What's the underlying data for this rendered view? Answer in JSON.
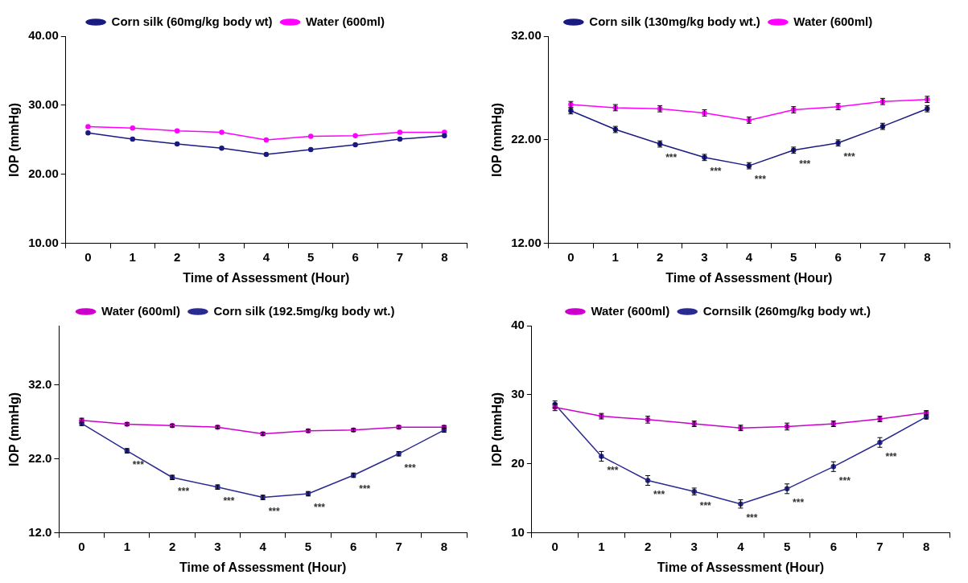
{
  "chart_data": [
    {
      "type": "line",
      "xlabel": "Time of Assessment (Hour)",
      "ylabel": "IOP (mmHg)",
      "categories": [
        "0",
        "1",
        "2",
        "3",
        "4",
        "5",
        "6",
        "7",
        "8"
      ],
      "ylim": [
        10,
        40
      ],
      "yticks": [
        {
          "value": 10,
          "label": "10.00"
        },
        {
          "value": 20,
          "label": "20.00"
        },
        {
          "value": 30,
          "label": "30.00"
        },
        {
          "value": 40,
          "label": "40.00"
        }
      ],
      "grid": false,
      "legend": "top",
      "marker": "circle",
      "line_style": "solid",
      "series": [
        {
          "name": "Corn silk (60mg/kg body wt)",
          "color": "#1a1a80",
          "values": [
            26.0,
            25.1,
            24.4,
            23.8,
            22.9,
            23.6,
            24.3,
            25.1,
            25.6
          ]
        },
        {
          "name": "Water (600ml)",
          "color": "#ff00ff",
          "values": [
            26.9,
            26.7,
            26.3,
            26.1,
            25.0,
            25.5,
            25.6,
            26.1,
            26.1
          ]
        }
      ]
    },
    {
      "type": "line",
      "xlabel": "Time of Assessment (Hour)",
      "ylabel": "IOP (mmHg)",
      "categories": [
        "0",
        "1",
        "2",
        "3",
        "4",
        "5",
        "6",
        "7",
        "8"
      ],
      "ylim": [
        12,
        32
      ],
      "yticks": [
        {
          "value": 12,
          "label": "12.00"
        },
        {
          "value": 22,
          "label": "22.00"
        },
        {
          "value": 32,
          "label": "32.00"
        }
      ],
      "grid": false,
      "legend": "top",
      "marker": "circle",
      "line_style": "solid",
      "annotations": [
        {
          "text": "***",
          "x": "2",
          "y": 21.6
        },
        {
          "text": "***",
          "x": "3",
          "y": 20.3
        },
        {
          "text": "***",
          "x": "4",
          "y": 19.5
        },
        {
          "text": "***",
          "x": "5",
          "y": 21.0
        },
        {
          "text": "***",
          "x": "6",
          "y": 21.7
        }
      ],
      "series": [
        {
          "name": "Corn silk (130mg/kg body wt.)",
          "color": "#1a1a80",
          "values": [
            24.8,
            23.0,
            21.6,
            20.3,
            19.5,
            21.0,
            21.7,
            23.3,
            25.0
          ],
          "errors": [
            0.3,
            0.3,
            0.3,
            0.3,
            0.3,
            0.3,
            0.3,
            0.3,
            0.3
          ]
        },
        {
          "name": "Water (600ml)",
          "color": "#ff00ff",
          "values": [
            25.4,
            25.1,
            25.0,
            24.6,
            23.9,
            24.9,
            25.2,
            25.7,
            25.9
          ],
          "errors": [
            0.3,
            0.3,
            0.3,
            0.3,
            0.3,
            0.3,
            0.3,
            0.3,
            0.3
          ]
        }
      ]
    },
    {
      "type": "line",
      "xlabel": "Time of Assessment (Hour)",
      "ylabel": "IOP (mmHg)",
      "categories": [
        "0",
        "1",
        "2",
        "3",
        "4",
        "5",
        "6",
        "7",
        "8"
      ],
      "ylim": [
        12,
        40
      ],
      "yticks": [
        {
          "value": 12,
          "label": "12.0"
        },
        {
          "value": 22,
          "label": "22.0"
        },
        {
          "value": 32,
          "label": "32.0"
        }
      ],
      "grid": false,
      "legend": "top",
      "marker": "circle",
      "line_style": "solid",
      "annotations": [
        {
          "text": "***",
          "x": "1",
          "y": 23.1
        },
        {
          "text": "***",
          "x": "2",
          "y": 19.5
        },
        {
          "text": "***",
          "x": "3",
          "y": 18.2
        },
        {
          "text": "***",
          "x": "4",
          "y": 16.8
        },
        {
          "text": "***",
          "x": "5",
          "y": 17.3
        },
        {
          "text": "***",
          "x": "6",
          "y": 19.8
        },
        {
          "text": "***",
          "x": "7",
          "y": 22.7
        }
      ],
      "series": [
        {
          "name": "Water (600ml)",
          "color": "#cc00cc",
          "values": [
            27.2,
            26.7,
            26.5,
            26.3,
            25.4,
            25.8,
            25.9,
            26.3,
            26.3
          ],
          "errors": [
            0.3,
            0.2,
            0.2,
            0.2,
            0.2,
            0.2,
            0.2,
            0.2,
            0.2
          ]
        },
        {
          "name": "Corn silk (192.5mg/kg body wt.)",
          "color": "#2a2a90",
          "values": [
            26.8,
            23.1,
            19.5,
            18.2,
            16.8,
            17.3,
            19.8,
            22.7,
            25.9
          ],
          "errors": [
            0.3,
            0.3,
            0.3,
            0.3,
            0.3,
            0.3,
            0.3,
            0.3,
            0.3
          ]
        }
      ]
    },
    {
      "type": "line",
      "xlabel": "Time of Assessment (Hour)",
      "ylabel": "IOP (mmHg)",
      "categories": [
        "0",
        "1",
        "2",
        "3",
        "4",
        "5",
        "6",
        "7",
        "8"
      ],
      "ylim": [
        10,
        40
      ],
      "yticks": [
        10,
        20,
        30,
        40
      ],
      "grid": false,
      "legend": "top",
      "marker": "circle",
      "line_style": "solid",
      "annotations": [
        {
          "text": "***",
          "x": "1",
          "y": 21.1
        },
        {
          "text": "***",
          "x": "2",
          "y": 17.6
        },
        {
          "text": "***",
          "x": "3",
          "y": 16.0
        },
        {
          "text": "***",
          "x": "4",
          "y": 14.2
        },
        {
          "text": "***",
          "x": "5",
          "y": 16.4
        },
        {
          "text": "***",
          "x": "6",
          "y": 19.6
        },
        {
          "text": "***",
          "x": "7",
          "y": 23.1
        }
      ],
      "series": [
        {
          "name": "Water (600ml)",
          "color": "#cc00cc",
          "values": [
            28.2,
            26.9,
            26.4,
            25.8,
            25.2,
            25.4,
            25.8,
            26.5,
            27.4
          ],
          "errors": [
            0.5,
            0.4,
            0.5,
            0.4,
            0.4,
            0.5,
            0.4,
            0.4,
            0.3
          ]
        },
        {
          "name": "Cornsilk (260mg/kg body wt.)",
          "color": "#2a2a90",
          "values": [
            28.6,
            21.1,
            17.6,
            16.0,
            14.2,
            16.4,
            19.6,
            23.1,
            26.8
          ],
          "errors": [
            0.5,
            0.7,
            0.7,
            0.5,
            0.6,
            0.7,
            0.7,
            0.7,
            0.3
          ]
        }
      ]
    }
  ]
}
